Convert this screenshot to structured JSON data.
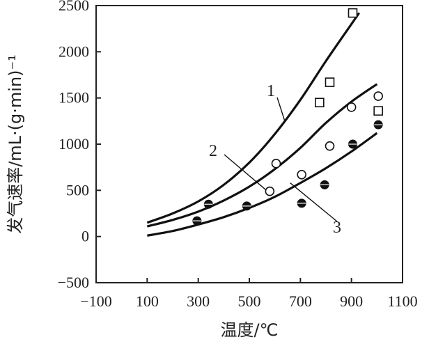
{
  "chart_data": {
    "type": "scatter",
    "title": "",
    "xlabel": "温度/℃",
    "ylabel": "发气速率/mL·(g·min)⁻¹",
    "xlim": [
      -100,
      1100
    ],
    "ylim": [
      -500,
      2500
    ],
    "xticks": [
      "−100",
      "100",
      "300",
      "500",
      "700",
      "900",
      "1100"
    ],
    "yticks": [
      "−500",
      "0",
      "500",
      "1000",
      "1500",
      "2000",
      "2500"
    ],
    "grid": false,
    "legend": "none",
    "series": [
      {
        "label": "1",
        "marker": "square-open",
        "points": [
          [
            775,
            1450
          ],
          [
            815,
            1670
          ],
          [
            905,
            2420
          ],
          [
            1005,
            1360
          ]
        ],
        "curve": [
          [
            100,
            150
          ],
          [
            200,
            250
          ],
          [
            300,
            380
          ],
          [
            400,
            560
          ],
          [
            500,
            800
          ],
          [
            600,
            1110
          ],
          [
            700,
            1480
          ],
          [
            800,
            1900
          ],
          [
            900,
            2300
          ],
          [
            930,
            2420
          ]
        ]
      },
      {
        "label": "2",
        "marker": "circle-open",
        "points": [
          [
            580,
            490
          ],
          [
            605,
            790
          ],
          [
            705,
            670
          ],
          [
            815,
            980
          ],
          [
            900,
            1400
          ],
          [
            1005,
            1520
          ]
        ],
        "curve": [
          [
            100,
            110
          ],
          [
            200,
            180
          ],
          [
            300,
            270
          ],
          [
            400,
            390
          ],
          [
            500,
            540
          ],
          [
            600,
            730
          ],
          [
            700,
            960
          ],
          [
            800,
            1230
          ],
          [
            900,
            1460
          ],
          [
            1000,
            1650
          ]
        ]
      },
      {
        "label": "3",
        "marker": "circle-half-filled",
        "points": [
          [
            295,
            170
          ],
          [
            340,
            350
          ],
          [
            490,
            330
          ],
          [
            705,
            360
          ],
          [
            795,
            560
          ],
          [
            905,
            1000
          ],
          [
            1005,
            1210
          ]
        ],
        "curve": [
          [
            100,
            10
          ],
          [
            200,
            60
          ],
          [
            300,
            130
          ],
          [
            400,
            210
          ],
          [
            500,
            310
          ],
          [
            600,
            430
          ],
          [
            700,
            580
          ],
          [
            800,
            740
          ],
          [
            900,
            920
          ],
          [
            1000,
            1120
          ]
        ]
      }
    ],
    "curve_labels": [
      "1",
      "2",
      "3"
    ]
  }
}
